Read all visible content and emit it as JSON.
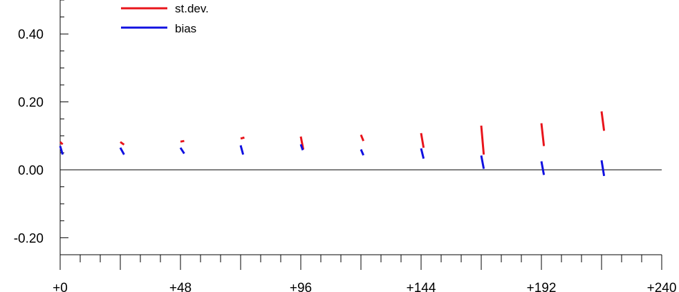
{
  "chart_data": {
    "type": "line",
    "title": "",
    "xlabel": "",
    "ylabel": "",
    "xlim": [
      0,
      240
    ],
    "ylim": [
      -0.25,
      0.5
    ],
    "x_ticks": [
      0,
      48,
      96,
      144,
      192,
      240
    ],
    "x_tick_labels": [
      "+0",
      "+48",
      "+96",
      "+144",
      "+192",
      "+240"
    ],
    "y_ticks": [
      -0.2,
      0.0,
      0.2,
      0.4
    ],
    "y_tick_labels": [
      "-0.20",
      "0.00",
      "0.20",
      "0.40"
    ],
    "zero_line": true,
    "grid": false,
    "legend_position": "top-left",
    "series": [
      {
        "name": "st.dev.",
        "color": "#e8141b",
        "segments": [
          {
            "x": [
              0,
              1
            ],
            "y": [
              0.082,
              0.075
            ]
          },
          {
            "x": [
              24,
              25.5
            ],
            "y": [
              0.082,
              0.074
            ]
          },
          {
            "x": [
              48,
              49.5
            ],
            "y": [
              0.083,
              0.085
            ]
          },
          {
            "x": [
              72,
              73.5
            ],
            "y": [
              0.092,
              0.095
            ]
          },
          {
            "x": [
              96,
              97
            ],
            "y": [
              0.098,
              0.06
            ]
          },
          {
            "x": [
              120,
              121
            ],
            "y": [
              0.103,
              0.085
            ]
          },
          {
            "x": [
              144,
              145
            ],
            "y": [
              0.108,
              0.065
            ]
          },
          {
            "x": [
              168,
              169
            ],
            "y": [
              0.13,
              0.045
            ]
          },
          {
            "x": [
              192,
              193
            ],
            "y": [
              0.137,
              0.07
            ]
          },
          {
            "x": [
              216,
              217
            ],
            "y": [
              0.172,
              0.115
            ]
          }
        ]
      },
      {
        "name": "bias",
        "color": "#1010e0",
        "segments": [
          {
            "x": [
              0,
              1
            ],
            "y": [
              0.07,
              0.045
            ]
          },
          {
            "x": [
              24,
              25.5
            ],
            "y": [
              0.065,
              0.045
            ]
          },
          {
            "x": [
              48,
              49.5
            ],
            "y": [
              0.065,
              0.048
            ]
          },
          {
            "x": [
              72,
              73
            ],
            "y": [
              0.072,
              0.045
            ]
          },
          {
            "x": [
              96,
              96.8
            ],
            "y": [
              0.075,
              0.058
            ]
          },
          {
            "x": [
              120,
              121
            ],
            "y": [
              0.06,
              0.043
            ]
          },
          {
            "x": [
              144,
              145
            ],
            "y": [
              0.063,
              0.033
            ]
          },
          {
            "x": [
              168,
              169
            ],
            "y": [
              0.042,
              0.003
            ]
          },
          {
            "x": [
              192,
              193
            ],
            "y": [
              0.025,
              -0.015
            ]
          },
          {
            "x": [
              216,
              217
            ],
            "y": [
              0.028,
              -0.018
            ]
          }
        ]
      }
    ]
  }
}
